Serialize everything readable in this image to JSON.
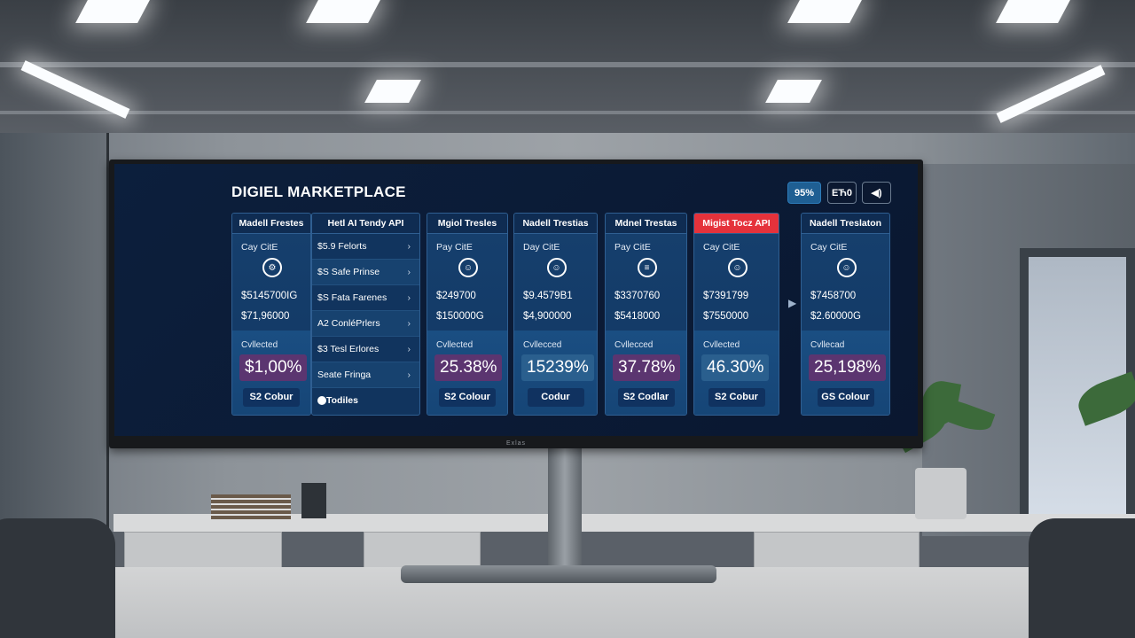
{
  "monitor": {
    "brand": "Exlas"
  },
  "app": {
    "title": "DIGIEL MARKETPLACE",
    "toolbar": {
      "btn1": "95%",
      "btn2": "ЕЋ0",
      "btn3": "◀)"
    }
  },
  "menu_card": {
    "title": "Hetl AI Tendy API",
    "items": [
      "$5.9 Felorts",
      "$S Safe Prinse",
      "$S Fata Farenes",
      "A2 ConléPrlers",
      "$3 Tesl Erlores",
      "Seate Fringa"
    ],
    "footer": "Todiles"
  },
  "cards": [
    {
      "title": "Madell Frestes",
      "label": "Cay CitE",
      "icon": "⚙",
      "value1": "$5145700IG",
      "value2": "$71,96000",
      "collected_label": "Cvllected",
      "percent": "$1,00%",
      "button": "S2 Cobur",
      "highlight": false
    },
    {
      "title": "Mgiol Tresles",
      "label": "Pay CitE",
      "icon": "☺",
      "value1": "$249700",
      "value2": "$150000G",
      "collected_label": "Cvllected",
      "percent": "25.38%",
      "button": "S2 Colour",
      "highlight": false
    },
    {
      "title": "Nadell Trestias",
      "label": "Day CitE",
      "icon": "☺",
      "value1": "$9.4579B1",
      "value2": "$4,900000",
      "collected_label": "Cvllecced",
      "percent": "15239%",
      "button": "Codur",
      "highlight": false
    },
    {
      "title": "Mdnel Trestas",
      "label": "Pay CitE",
      "icon": "≡",
      "value1": "$3370760",
      "value2": "$5418000",
      "collected_label": "Cvllecced",
      "percent": "37.78%",
      "button": "S2 Codlar",
      "highlight": false
    },
    {
      "title": "Migist Tocz API",
      "label": "Cay CitE",
      "icon": "☺",
      "value1": "$7391799",
      "value2": "$7550000",
      "collected_label": "Cvllected",
      "percent": "46.30%",
      "button": "S2 Cobur",
      "highlight": true
    },
    {
      "title": "Nadell Treslaton",
      "label": "Cay CitE",
      "icon": "☺",
      "value1": "$7458700",
      "value2": "$2.60000G",
      "collected_label": "Cvllecad",
      "percent": "25,198%",
      "button": "GS Colour",
      "highlight": false
    }
  ],
  "colors": {
    "screen_bg": "#0b1b36",
    "card_bg": "#16406e",
    "accent_red": "#e5323b",
    "percent_badge": "#5b3570",
    "accent_blue": "#1f5f93"
  }
}
